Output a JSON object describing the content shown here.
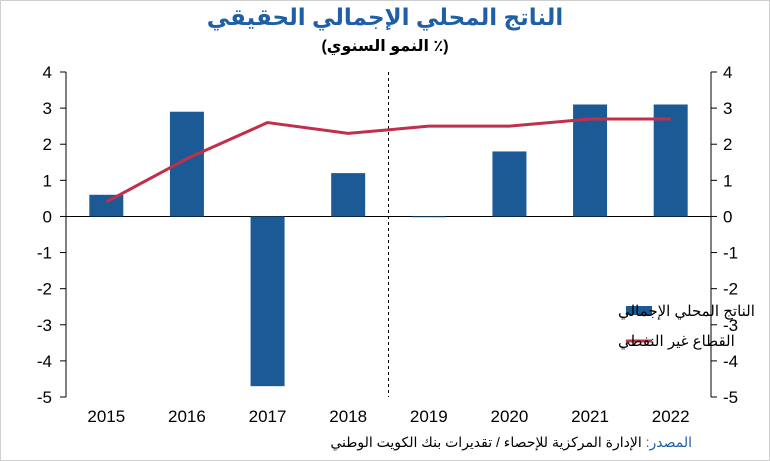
{
  "title": "الناتج المحلي الإجمالي الحقيقي",
  "subtitle": "(٪ النمو السنوي)",
  "source_label": "المصدر:",
  "source_text": "الإدارة المركزية للإحصاء / تقديرات بنك الكويت الوطني",
  "colors": {
    "bar": "#1c5a96",
    "line": "#c0304b",
    "title": "#1f5fa6"
  },
  "chart_data": {
    "type": "bar",
    "categories": [
      "2015",
      "2016",
      "2017",
      "2018",
      "2019",
      "2020",
      "2021",
      "2022"
    ],
    "series": [
      {
        "name": "الناتج المحلي الإجمالي",
        "type": "bar",
        "values": [
          0.6,
          2.9,
          -4.7,
          1.2,
          0.0,
          1.8,
          3.1,
          3.1
        ]
      },
      {
        "name": "القطاع غير النفطي",
        "type": "line",
        "values": [
          0.4,
          1.6,
          2.6,
          2.3,
          2.5,
          2.5,
          2.7,
          2.7
        ]
      }
    ],
    "ylim": [
      -5,
      4
    ],
    "yticks": [
      "4",
      "3",
      "2",
      "1",
      "0",
      "-1",
      "-2",
      "-3",
      "-4",
      "-5"
    ],
    "legend_position": "lower-right",
    "forecast_divider_after": "2018"
  }
}
